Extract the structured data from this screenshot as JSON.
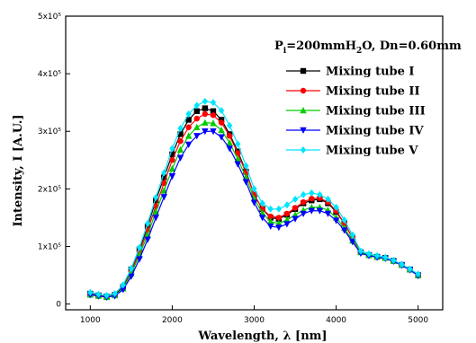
{
  "chart_data": {
    "type": "scatter",
    "title": "",
    "xlabel": "Wavelength, λ [nm]",
    "ylabel": "Intensity, I [A.U.]",
    "xlim": [
      700,
      5300
    ],
    "ylim": [
      -10000,
      500000
    ],
    "x_ticks": [
      1000,
      2000,
      3000,
      4000,
      5000
    ],
    "y_ticks": [
      {
        "value": 0,
        "label": "0"
      },
      {
        "value": 100000,
        "label": "1x10⁵"
      },
      {
        "value": 200000,
        "label": "2x10⁵"
      },
      {
        "value": 300000,
        "label": "3x10⁵"
      },
      {
        "value": 400000,
        "label": "4x10⁵"
      },
      {
        "value": 500000,
        "label": "5x10⁵"
      }
    ],
    "annotation": {
      "P_main": "P",
      "P_sub": "i",
      "mid": "=200mmH",
      "H2O_sub": "2",
      "tail": "O, Dn=0.60mm"
    },
    "legend_position": "top-right",
    "grid": false,
    "series": [
      {
        "name": "Mixing tube I",
        "color": "#000000",
        "marker": "square",
        "x": [
          1000,
          1100,
          1200,
          1300,
          1400,
          1500,
          1600,
          1700,
          1800,
          1900,
          2000,
          2100,
          2200,
          2300,
          2400,
          2500,
          2600,
          2700,
          2800,
          2900,
          3000,
          3100,
          3200,
          3300,
          3400,
          3500,
          3600,
          3700,
          3800,
          3900,
          4000,
          4100,
          4200,
          4300,
          4400,
          4500,
          4600,
          4700,
          4800,
          4900,
          5000
        ],
        "y": [
          18000,
          15000,
          13000,
          16000,
          30000,
          60000,
          95000,
          135000,
          180000,
          220000,
          260000,
          295000,
          320000,
          335000,
          340000,
          335000,
          320000,
          295000,
          265000,
          230000,
          190000,
          165000,
          150000,
          148000,
          155000,
          165000,
          175000,
          180000,
          182000,
          175000,
          160000,
          140000,
          115000,
          90000,
          85000,
          82000,
          80000,
          75000,
          68000,
          60000,
          50000
        ]
      },
      {
        "name": "Mixing tube II",
        "color": "#ff0000",
        "marker": "circle",
        "x": [
          1000,
          1100,
          1200,
          1300,
          1400,
          1500,
          1600,
          1700,
          1800,
          1900,
          2000,
          2100,
          2200,
          2300,
          2400,
          2500,
          2600,
          2700,
          2800,
          2900,
          3000,
          3100,
          3200,
          3300,
          3400,
          3500,
          3600,
          3700,
          3800,
          3900,
          4000,
          4100,
          4200,
          4300,
          4400,
          4500,
          4600,
          4700,
          4800,
          4900,
          5000
        ],
        "y": [
          17000,
          14000,
          13000,
          15000,
          28000,
          56000,
          90000,
          128000,
          170000,
          210000,
          250000,
          283000,
          307000,
          322000,
          330000,
          328000,
          315000,
          292000,
          262000,
          228000,
          190000,
          165000,
          152000,
          150000,
          157000,
          167000,
          177000,
          183000,
          184000,
          177000,
          162000,
          140000,
          115000,
          90000,
          85000,
          82000,
          80000,
          75000,
          68000,
          60000,
          50000
        ]
      },
      {
        "name": "Mixing tube III",
        "color": "#00cc00",
        "marker": "triangle-up",
        "x": [
          1000,
          1100,
          1200,
          1300,
          1400,
          1500,
          1600,
          1700,
          1800,
          1900,
          2000,
          2100,
          2200,
          2300,
          2400,
          2500,
          2600,
          2700,
          2800,
          2900,
          3000,
          3100,
          3200,
          3300,
          3400,
          3500,
          3600,
          3700,
          3800,
          3900,
          4000,
          4100,
          4200,
          4300,
          4400,
          4500,
          4600,
          4700,
          4800,
          4900,
          5000
        ],
        "y": [
          16000,
          14000,
          12000,
          15000,
          27000,
          53000,
          85000,
          120000,
          160000,
          197000,
          235000,
          268000,
          292000,
          307000,
          315000,
          314000,
          302000,
          280000,
          252000,
          220000,
          183000,
          158000,
          143000,
          140000,
          146000,
          155000,
          163000,
          168000,
          168000,
          163000,
          150000,
          132000,
          110000,
          90000,
          85000,
          82000,
          80000,
          75000,
          68000,
          60000,
          50000
        ]
      },
      {
        "name": "Mixing tube IV",
        "color": "#0000ff",
        "marker": "triangle-down",
        "x": [
          1000,
          1100,
          1200,
          1300,
          1400,
          1500,
          1600,
          1700,
          1800,
          1900,
          2000,
          2100,
          2200,
          2300,
          2400,
          2500,
          2600,
          2700,
          2800,
          2900,
          3000,
          3100,
          3200,
          3300,
          3400,
          3500,
          3600,
          3700,
          3800,
          3900,
          4000,
          4100,
          4200,
          4300,
          4400,
          4500,
          4600,
          4700,
          4800,
          4900,
          5000
        ],
        "y": [
          16000,
          14000,
          12000,
          14000,
          25000,
          48000,
          78000,
          112000,
          150000,
          186000,
          222000,
          254000,
          277000,
          292000,
          300000,
          300000,
          290000,
          270000,
          243000,
          212000,
          176000,
          150000,
          135000,
          133000,
          139000,
          148000,
          157000,
          162000,
          162000,
          157000,
          145000,
          128000,
          108000,
          88000,
          84000,
          81000,
          79000,
          74000,
          67000,
          59000,
          49000
        ]
      },
      {
        "name": "Mixing tube V",
        "color": "#00e5ff",
        "marker": "diamond",
        "x": [
          1000,
          1100,
          1200,
          1300,
          1400,
          1500,
          1600,
          1700,
          1800,
          1900,
          2000,
          2100,
          2200,
          2300,
          2400,
          2500,
          2600,
          2700,
          2800,
          2900,
          3000,
          3100,
          3200,
          3300,
          3400,
          3500,
          3600,
          3700,
          3800,
          3900,
          4000,
          4100,
          4200,
          4300,
          4400,
          4500,
          4600,
          4700,
          4800,
          4900,
          5000
        ],
        "y": [
          20000,
          17000,
          15000,
          18000,
          33000,
          62000,
          98000,
          140000,
          185000,
          228000,
          270000,
          305000,
          330000,
          345000,
          352000,
          350000,
          336000,
          310000,
          278000,
          240000,
          200000,
          175000,
          165000,
          165000,
          172000,
          182000,
          190000,
          193000,
          190000,
          182000,
          168000,
          146000,
          120000,
          92000,
          87000,
          84000,
          81000,
          76000,
          69000,
          61000,
          52000
        ]
      }
    ]
  }
}
